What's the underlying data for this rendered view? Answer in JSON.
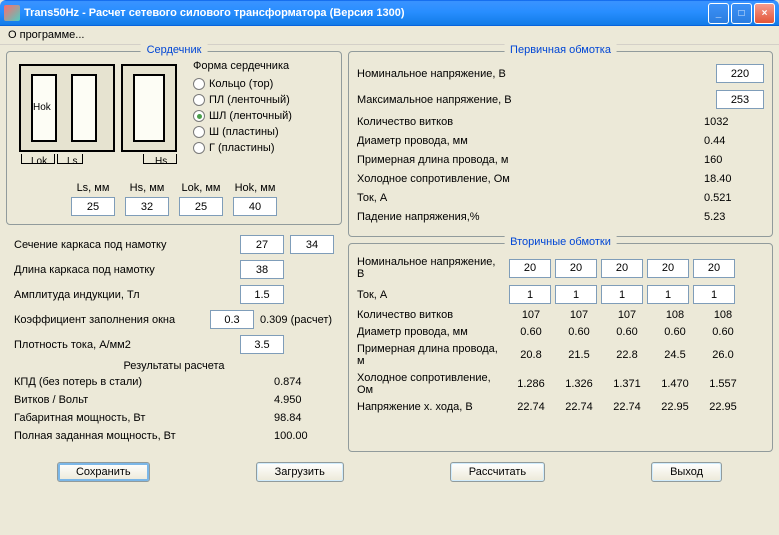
{
  "window": {
    "title": "Trans50Hz - Расчет сетевого силового трансформатора (Версия 1300)"
  },
  "menu": {
    "about": "О программе..."
  },
  "core": {
    "title": "Сердечник",
    "form_label": "Форма сердечника",
    "radios": [
      {
        "label": "Кольцо (тор)",
        "sel": false
      },
      {
        "label": "ПЛ (ленточный)",
        "sel": false
      },
      {
        "label": "ШЛ (ленточный)",
        "sel": true
      },
      {
        "label": "Ш (пластины)",
        "sel": false
      },
      {
        "label": "Г (пластины)",
        "sel": false
      }
    ],
    "dims": [
      {
        "label": "Ls, мм",
        "val": "25"
      },
      {
        "label": "Hs, мм",
        "val": "32"
      },
      {
        "label": "Lok, мм",
        "val": "25"
      },
      {
        "label": "Hok, мм",
        "val": "40"
      }
    ],
    "pic_labels": {
      "hok": "Hok",
      "lok": "Lok",
      "ls": "Ls",
      "hs": "Hs"
    }
  },
  "params": {
    "frame_cs": {
      "lbl": "Сечение каркаса под намотку",
      "v1": "27",
      "v2": "34"
    },
    "frame_len": {
      "lbl": "Длина каркаса под намотку",
      "v": "38"
    },
    "induct": {
      "lbl": "Амплитуда индукции, Тл",
      "v": "1.5"
    },
    "fill": {
      "lbl": "Коэффициент заполнения окна",
      "v": "0.3",
      "calc": "0.309 (расчет)"
    },
    "curr_dens": {
      "lbl": "Плотность тока, А/мм2",
      "v": "3.5"
    }
  },
  "results": {
    "hdr": "Результаты расчета",
    "rows": [
      {
        "lbl": "КПД (без потерь в стали)",
        "val": "0.874"
      },
      {
        "lbl": "Витков / Вольт",
        "val": "4.950"
      },
      {
        "lbl": "Габаритная мощность, Вт",
        "val": "98.84"
      },
      {
        "lbl": "Полная заданная мощность, Вт",
        "val": "100.00"
      }
    ]
  },
  "primary": {
    "title": "Первичная обмотка",
    "rows": [
      {
        "lbl": "Номинальное напряжение, В",
        "input": true,
        "val": "220"
      },
      {
        "lbl": "Максимальное напряжение, В",
        "input": true,
        "val": "253"
      },
      {
        "lbl": "Количество витков",
        "input": false,
        "val": "1032"
      },
      {
        "lbl": "Диаметр провода, мм",
        "input": false,
        "val": "0.44"
      },
      {
        "lbl": "Примерная длина провода, м",
        "input": false,
        "val": "160"
      },
      {
        "lbl": "Холодное сопротивление, Ом",
        "input": false,
        "val": "18.40"
      },
      {
        "lbl": "Ток, А",
        "input": false,
        "val": "0.521"
      },
      {
        "lbl": "Падение напряжения,%",
        "input": false,
        "val": "5.23"
      }
    ]
  },
  "secondary": {
    "title": "Вторичные обмотки",
    "rows": [
      {
        "lbl": "Номинальное напряжение, В",
        "input": true,
        "vals": [
          "20",
          "20",
          "20",
          "20",
          "20"
        ]
      },
      {
        "lbl": "Ток, А",
        "input": true,
        "vals": [
          "1",
          "1",
          "1",
          "1",
          "1"
        ]
      },
      {
        "lbl": "Количество витков",
        "input": false,
        "vals": [
          "107",
          "107",
          "107",
          "108",
          "108"
        ]
      },
      {
        "lbl": "Диаметр провода, мм",
        "input": false,
        "vals": [
          "0.60",
          "0.60",
          "0.60",
          "0.60",
          "0.60"
        ]
      },
      {
        "lbl": "Примерная длина провода, м",
        "input": false,
        "vals": [
          "20.8",
          "21.5",
          "22.8",
          "24.5",
          "26.0"
        ]
      },
      {
        "lbl": "Холодное сопротивление, Ом",
        "input": false,
        "vals": [
          "1.286",
          "1.326",
          "1.371",
          "1.470",
          "1.557"
        ]
      },
      {
        "lbl": "Напряжение х. хода, В",
        "input": false,
        "vals": [
          "22.74",
          "22.74",
          "22.74",
          "22.95",
          "22.95"
        ]
      }
    ]
  },
  "buttons": {
    "save": "Сохранить",
    "load": "Загрузить",
    "calc": "Рассчитать",
    "exit": "Выход"
  }
}
